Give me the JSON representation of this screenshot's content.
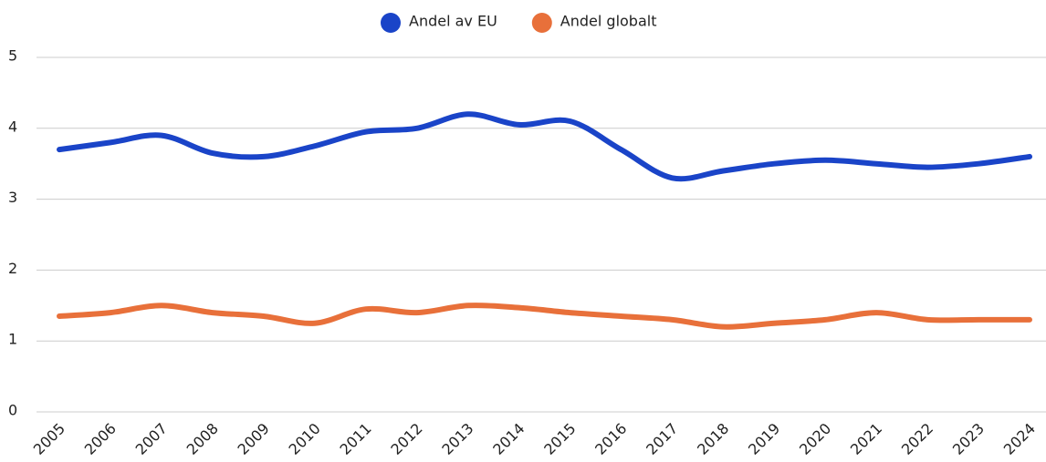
{
  "chart_data": {
    "type": "line",
    "categories": [
      "2005",
      "2006",
      "2007",
      "2008",
      "2009",
      "2010",
      "2011",
      "2012",
      "2013",
      "2014",
      "2015",
      "2016",
      "2017",
      "2018",
      "2019",
      "2020",
      "2021",
      "2022",
      "2023",
      "2024"
    ],
    "series": [
      {
        "name": "Andel av EU",
        "color": "#1a44c8",
        "values": [
          3.7,
          3.8,
          3.9,
          3.65,
          3.6,
          3.75,
          3.95,
          4.0,
          4.2,
          4.05,
          4.1,
          3.7,
          3.3,
          3.4,
          3.5,
          3.55,
          3.5,
          3.45,
          3.5,
          3.6
        ]
      },
      {
        "name": "Andel globalt",
        "color": "#e8703a",
        "values": [
          1.35,
          1.4,
          1.5,
          1.4,
          1.35,
          1.25,
          1.45,
          1.4,
          1.5,
          1.47,
          1.4,
          1.35,
          1.3,
          1.2,
          1.25,
          1.3,
          1.4,
          1.3,
          1.3,
          1.3
        ]
      }
    ],
    "ylim": [
      0,
      5
    ],
    "yticks": [
      0,
      1,
      2,
      3,
      4,
      5
    ],
    "grid": true,
    "legend": "top"
  }
}
